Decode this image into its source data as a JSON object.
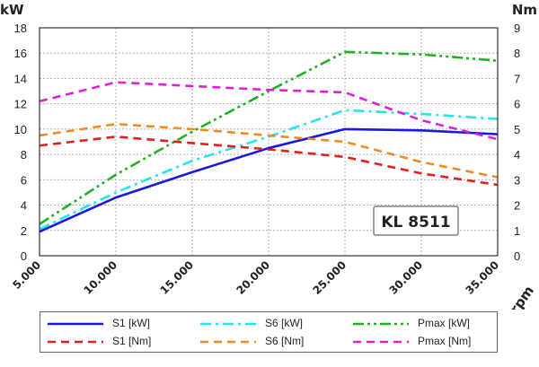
{
  "chart_data": {
    "type": "line",
    "annotation": "KL 8511",
    "x": [
      5000,
      10000,
      15000,
      20000,
      25000,
      30000,
      35000
    ],
    "x_tick_labels": [
      "5.000",
      "10.000",
      "15.000",
      "20.000",
      "25.000",
      "30.000",
      "35.000"
    ],
    "xlabel": "rpm",
    "ylabel_left": "kW",
    "ylabel_right": "Nm",
    "ylim_left": [
      0,
      18
    ],
    "ylim_right": [
      0,
      9
    ],
    "y_ticks_left": [
      "0",
      "2",
      "4",
      "6",
      "8",
      "10",
      "12",
      "14",
      "16",
      "18"
    ],
    "y_ticks_right": [
      "0",
      "1",
      "2",
      "3",
      "4",
      "5",
      "6",
      "7",
      "8",
      "9"
    ],
    "grid": true,
    "legend_position": "bottom",
    "series": [
      {
        "name": "S1 [kW]",
        "axis": "left",
        "color": "#1a1adb",
        "dash": "solid",
        "values": [
          1.9,
          4.6,
          6.6,
          8.5,
          10.0,
          9.9,
          9.6
        ]
      },
      {
        "name": "S6 [kW]",
        "axis": "left",
        "color": "#22e6ef",
        "dash": "dashdot",
        "values": [
          2.1,
          5.0,
          7.5,
          9.4,
          11.5,
          11.2,
          10.8
        ]
      },
      {
        "name": "Pmax [kW]",
        "axis": "left",
        "color": "#22b022",
        "dash": "dashdotdot",
        "values": [
          2.5,
          6.4,
          9.8,
          13.0,
          16.1,
          15.9,
          15.4
        ]
      },
      {
        "name": "S1 [Nm]",
        "axis": "right",
        "color": "#e02020",
        "dash": "dash",
        "values": [
          4.35,
          4.7,
          4.45,
          4.2,
          3.9,
          3.25,
          2.8
        ]
      },
      {
        "name": "S6 [Nm]",
        "axis": "right",
        "color": "#f08c1e",
        "dash": "dash",
        "values": [
          4.75,
          5.2,
          5.0,
          4.75,
          4.5,
          3.7,
          3.1
        ]
      },
      {
        "name": "Pmax [Nm]",
        "axis": "right",
        "color": "#e020d8",
        "dash": "dash",
        "values": [
          6.1,
          6.85,
          6.7,
          6.55,
          6.45,
          5.35,
          4.6
        ]
      }
    ]
  }
}
